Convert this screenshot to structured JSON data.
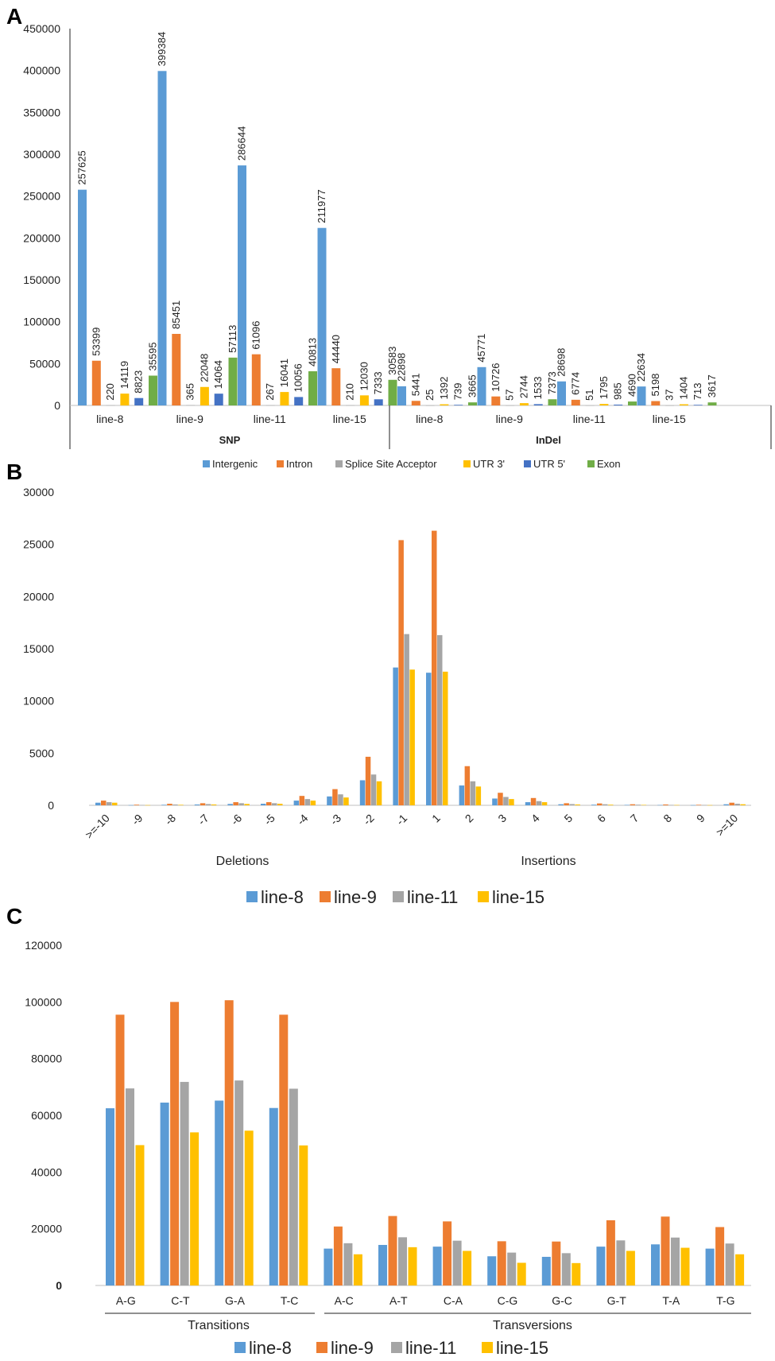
{
  "chart_data": [
    {
      "panel": "A",
      "type": "bar",
      "title": "",
      "xlabel": "",
      "ylabel": "",
      "ylim": [
        0,
        450000
      ],
      "yticks": [
        "0",
        "50000",
        "100000",
        "150000",
        "200000",
        "250000",
        "300000",
        "350000",
        "400000",
        "450000"
      ],
      "groups": [
        {
          "label": "SNP",
          "categories": [
            "line-8",
            "line-9",
            "line-11",
            "line-15"
          ]
        },
        {
          "label": "InDel",
          "categories": [
            "line-8",
            "line-9",
            "line-11",
            "line-15"
          ]
        }
      ],
      "series": [
        {
          "name": "Intergenic",
          "color": "#5B9BD5",
          "values": [
            257625,
            399384,
            286644,
            211977,
            22898,
            45771,
            28698,
            22634
          ]
        },
        {
          "name": "Intron",
          "color": "#ED7D31",
          "values": [
            53399,
            85451,
            61096,
            44440,
            5441,
            10726,
            6774,
            5198
          ]
        },
        {
          "name": "Splice Site Acceptor",
          "color": "#A5A5A5",
          "values": [
            220,
            365,
            267,
            210,
            25,
            57,
            51,
            37
          ]
        },
        {
          "name": "UTR 3'",
          "color": "#FFC000",
          "values": [
            14119,
            22048,
            16041,
            12030,
            1392,
            2744,
            1795,
            1404
          ]
        },
        {
          "name": "UTR 5'",
          "color": "#4472C4",
          "values": [
            8823,
            14064,
            10056,
            7333,
            739,
            1533,
            985,
            713
          ]
        },
        {
          "name": "Exon",
          "color": "#70AD47",
          "values": [
            35595,
            57113,
            40813,
            30583,
            3665,
            7373,
            4690,
            3617
          ]
        }
      ],
      "legend": "bottom"
    },
    {
      "panel": "B",
      "type": "bar",
      "title": "",
      "ylim": [
        0,
        30000
      ],
      "yticks": [
        "0",
        "5000",
        "10000",
        "15000",
        "20000",
        "25000",
        "30000"
      ],
      "categories": [
        ">=-10",
        "-9",
        "-8",
        "-7",
        "-6",
        "-5",
        "-4",
        "-3",
        "-2",
        "-1",
        "1",
        "2",
        "3",
        "4",
        "5",
        "6",
        "7",
        "8",
        "9",
        ">=10"
      ],
      "group_labels": [
        "Deletions",
        "Insertions"
      ],
      "series": [
        {
          "name": "line-8",
          "color": "#5B9BD5",
          "values": [
            250,
            20,
            50,
            80,
            130,
            150,
            450,
            850,
            2400,
            13200,
            12700,
            1900,
            650,
            300,
            100,
            60,
            40,
            30,
            20,
            100
          ]
        },
        {
          "name": "line-9",
          "color": "#ED7D31",
          "values": [
            450,
            60,
            150,
            200,
            300,
            300,
            900,
            1550,
            4650,
            25400,
            26300,
            3750,
            1200,
            700,
            200,
            180,
            100,
            80,
            50,
            250
          ]
        },
        {
          "name": "line-11",
          "color": "#A5A5A5",
          "values": [
            300,
            30,
            80,
            120,
            200,
            200,
            600,
            1050,
            2950,
            16400,
            16300,
            2300,
            800,
            400,
            120,
            100,
            60,
            40,
            30,
            150
          ]
        },
        {
          "name": "line-15",
          "color": "#FFC000",
          "values": [
            250,
            20,
            50,
            80,
            130,
            150,
            450,
            750,
            2300,
            13000,
            12800,
            1800,
            600,
            300,
            80,
            60,
            40,
            30,
            20,
            100
          ]
        }
      ],
      "legend": "bottom"
    },
    {
      "panel": "C",
      "type": "bar",
      "title": "",
      "ylim": [
        0,
        120000
      ],
      "yticks": [
        "0",
        "20000",
        "40000",
        "60000",
        "80000",
        "100000",
        "120000"
      ],
      "categories": [
        "A-G",
        "C-T",
        "G-A",
        "T-C",
        "A-C",
        "A-T",
        "C-A",
        "C-G",
        "G-C",
        "G-T",
        "T-A",
        "T-G"
      ],
      "group_labels": [
        "Transitions",
        "Transversions"
      ],
      "series": [
        {
          "name": "line-8",
          "color": "#5B9BD5",
          "values": [
            62500,
            64500,
            65200,
            62600,
            13000,
            14300,
            13700,
            10300,
            10100,
            13700,
            14500,
            13000
          ]
        },
        {
          "name": "line-9",
          "color": "#ED7D31",
          "values": [
            95500,
            100000,
            100600,
            95500,
            20800,
            24500,
            22600,
            15600,
            15500,
            23000,
            24300,
            20600
          ]
        },
        {
          "name": "line-11",
          "color": "#A5A5A5",
          "values": [
            69500,
            71800,
            72300,
            69400,
            14900,
            17000,
            15800,
            11600,
            11400,
            15900,
            16900,
            14800
          ]
        },
        {
          "name": "line-15",
          "color": "#FFC000",
          "values": [
            49500,
            54000,
            54600,
            49400,
            11000,
            13500,
            12200,
            8000,
            7900,
            12200,
            13300,
            11000
          ]
        }
      ],
      "legend": "bottom"
    }
  ]
}
